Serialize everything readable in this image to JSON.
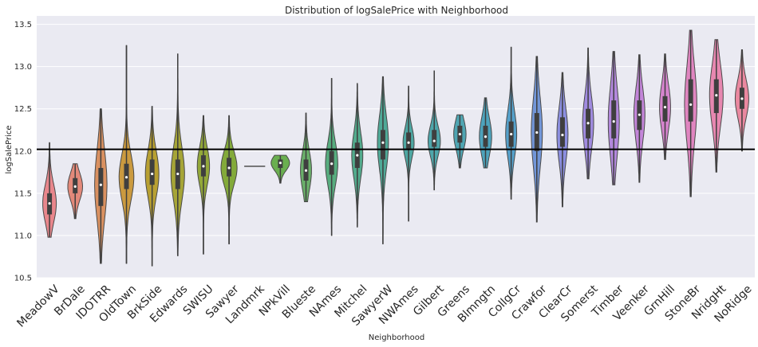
{
  "chart_data": {
    "type": "violin",
    "title": "Distribution of logSalePrice with Neighborhood",
    "xlabel": "Neighborhood",
    "ylabel": "logSalePrice",
    "ylim": [
      10.5,
      13.6
    ],
    "yticks": [
      "10.5",
      "11.0",
      "11.5",
      "12.0",
      "12.5",
      "13.0",
      "13.5"
    ],
    "grid": true,
    "reference_line_y": 12.02,
    "categories": [
      "MeadowV",
      "BrDale",
      "IDOTRR",
      "OldTown",
      "BrkSide",
      "Edwards",
      "SWISU",
      "Sawyer",
      "Landmrk",
      "NPkVill",
      "Blueste",
      "NAmes",
      "Mitchel",
      "SawyerW",
      "NWAmes",
      "Gilbert",
      "Greens",
      "Blmngtn",
      "CollgCr",
      "Crawfor",
      "ClearCr",
      "Somerst",
      "Timber",
      "Veenker",
      "GrnHill",
      "StoneBr",
      "NridgHt",
      "NoRidge"
    ],
    "colors": [
      "#e8868c",
      "#e3897a",
      "#d99060",
      "#cb9a3f",
      "#b8a032",
      "#a6a537",
      "#93a83a",
      "#83aa3a",
      "#6fad3a",
      "#6aaf50",
      "#6aaf6a",
      "#57ad7f",
      "#52ab8d",
      "#4fa997",
      "#4ea7a2",
      "#4ea6ab",
      "#4fa5b2",
      "#4da3bc",
      "#55a0ca",
      "#7296d8",
      "#8c8fe0",
      "#a08be0",
      "#b388dd",
      "#c385d9",
      "#d684ce",
      "#e085c0",
      "#e787b0",
      "#ea88a0"
    ],
    "series": [
      {
        "min": 10.98,
        "q1": 11.25,
        "median": 11.38,
        "q3": 11.5,
        "max": 12.1,
        "width": 0.55
      },
      {
        "min": 11.2,
        "q1": 11.5,
        "median": 11.58,
        "q3": 11.68,
        "max": 11.85,
        "width": 0.6
      },
      {
        "min": 10.67,
        "q1": 11.35,
        "median": 11.6,
        "q3": 11.8,
        "max": 12.5,
        "width": 0.5
      },
      {
        "min": 10.67,
        "q1": 11.55,
        "median": 11.69,
        "q3": 11.85,
        "max": 13.25,
        "width": 0.6
      },
      {
        "min": 10.64,
        "q1": 11.6,
        "median": 11.73,
        "q3": 11.9,
        "max": 12.53,
        "width": 0.55
      },
      {
        "min": 10.76,
        "q1": 11.55,
        "median": 11.73,
        "q3": 11.9,
        "max": 13.15,
        "width": 0.55
      },
      {
        "min": 10.78,
        "q1": 11.7,
        "median": 11.82,
        "q3": 11.95,
        "max": 12.42,
        "width": 0.5
      },
      {
        "min": 10.9,
        "q1": 11.7,
        "median": 11.8,
        "q3": 11.92,
        "max": 12.42,
        "width": 0.65
      },
      {
        "min": 11.82,
        "q1": 11.82,
        "median": 11.82,
        "q3": 11.82,
        "max": 11.82,
        "width": 0.45
      },
      {
        "min": 11.62,
        "q1": 11.8,
        "median": 11.86,
        "q3": 11.9,
        "max": 11.95,
        "width": 0.75
      },
      {
        "min": 11.4,
        "q1": 11.65,
        "median": 11.77,
        "q3": 11.9,
        "max": 12.45,
        "width": 0.45
      },
      {
        "min": 11.0,
        "q1": 11.72,
        "median": 11.85,
        "q3": 12.0,
        "max": 12.86,
        "width": 0.5
      },
      {
        "min": 11.1,
        "q1": 11.8,
        "median": 11.95,
        "q3": 12.1,
        "max": 12.8,
        "width": 0.45
      },
      {
        "min": 10.9,
        "q1": 11.9,
        "median": 12.1,
        "q3": 12.25,
        "max": 12.88,
        "width": 0.45
      },
      {
        "min": 11.17,
        "q1": 12.02,
        "median": 12.1,
        "q3": 12.22,
        "max": 12.77,
        "width": 0.45
      },
      {
        "min": 11.54,
        "q1": 12.05,
        "median": 12.12,
        "q3": 12.25,
        "max": 12.95,
        "width": 0.5
      },
      {
        "min": 11.8,
        "q1": 12.1,
        "median": 12.2,
        "q3": 12.3,
        "max": 12.43,
        "width": 0.5
      },
      {
        "min": 11.8,
        "q1": 12.05,
        "median": 12.17,
        "q3": 12.3,
        "max": 12.63,
        "width": 0.5
      },
      {
        "min": 11.43,
        "q1": 12.05,
        "median": 12.2,
        "q3": 12.35,
        "max": 13.23,
        "width": 0.45
      },
      {
        "min": 11.16,
        "q1": 12.0,
        "median": 12.22,
        "q3": 12.45,
        "max": 13.12,
        "width": 0.45
      },
      {
        "min": 11.34,
        "q1": 12.05,
        "median": 12.19,
        "q3": 12.4,
        "max": 12.93,
        "width": 0.45
      },
      {
        "min": 11.67,
        "q1": 12.15,
        "median": 12.33,
        "q3": 12.5,
        "max": 13.22,
        "width": 0.45
      },
      {
        "min": 11.6,
        "q1": 12.15,
        "median": 12.35,
        "q3": 12.6,
        "max": 13.18,
        "width": 0.45
      },
      {
        "min": 11.63,
        "q1": 12.25,
        "median": 12.43,
        "q3": 12.6,
        "max": 13.14,
        "width": 0.45
      },
      {
        "min": 11.9,
        "q1": 12.35,
        "median": 12.52,
        "q3": 12.65,
        "max": 13.15,
        "width": 0.45
      },
      {
        "min": 11.46,
        "q1": 12.35,
        "median": 12.55,
        "q3": 12.85,
        "max": 13.43,
        "width": 0.5
      },
      {
        "min": 11.75,
        "q1": 12.45,
        "median": 12.66,
        "q3": 12.85,
        "max": 13.32,
        "width": 0.55
      },
      {
        "min": 12.0,
        "q1": 12.5,
        "median": 12.62,
        "q3": 12.75,
        "max": 13.2,
        "width": 0.55
      }
    ]
  }
}
